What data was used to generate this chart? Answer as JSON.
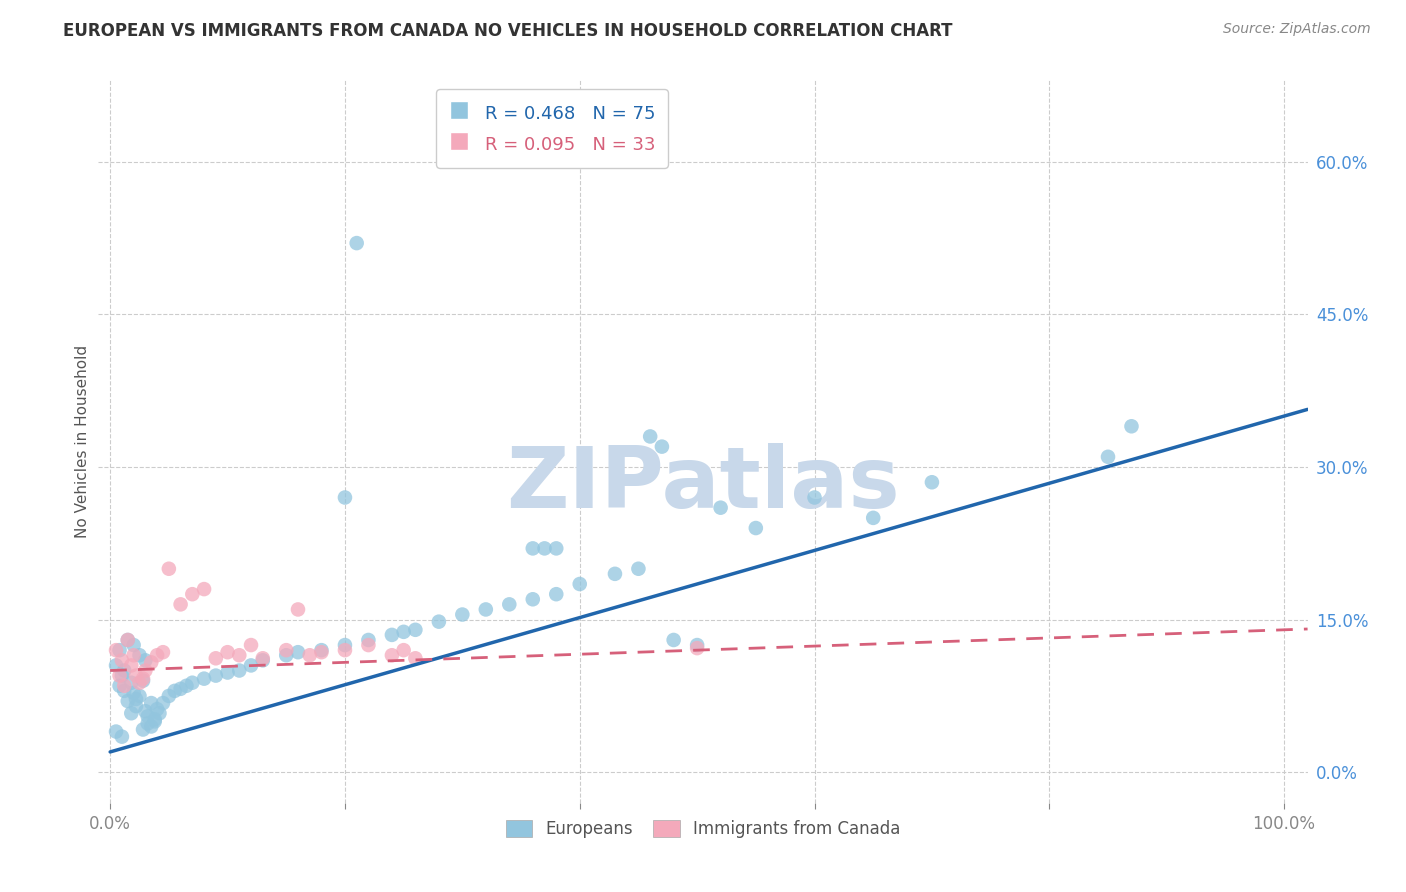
{
  "title": "EUROPEAN VS IMMIGRANTS FROM CANADA NO VEHICLES IN HOUSEHOLD CORRELATION CHART",
  "source": "Source: ZipAtlas.com",
  "ylabel": "No Vehicles in Household",
  "blue_R": 0.468,
  "blue_N": 75,
  "pink_R": 0.095,
  "pink_N": 33,
  "blue_color": "#92c5de",
  "pink_color": "#f4a9bb",
  "blue_line_color": "#2166ac",
  "pink_line_color": "#d6607a",
  "background_color": "#ffffff",
  "grid_color": "#cccccc",
  "watermark_color": "#c8d8ea",
  "blue_line_slope": 0.33,
  "blue_line_intercept": 0.02,
  "pink_line_slope": 0.04,
  "pink_line_intercept": 0.1,
  "blue_points_x": [
    0.005,
    0.008,
    0.01,
    0.012,
    0.015,
    0.018,
    0.02,
    0.022,
    0.025,
    0.028,
    0.03,
    0.032,
    0.035,
    0.038,
    0.04,
    0.015,
    0.02,
    0.025,
    0.03,
    0.018,
    0.022,
    0.012,
    0.008,
    0.035,
    0.042,
    0.005,
    0.01,
    0.028,
    0.032,
    0.038,
    0.045,
    0.05,
    0.055,
    0.06,
    0.065,
    0.07,
    0.08,
    0.09,
    0.1,
    0.11,
    0.12,
    0.13,
    0.15,
    0.16,
    0.18,
    0.2,
    0.22,
    0.24,
    0.25,
    0.26,
    0.28,
    0.3,
    0.32,
    0.34,
    0.36,
    0.38,
    0.38,
    0.4,
    0.43,
    0.45,
    0.46,
    0.47,
    0.5,
    0.52,
    0.55,
    0.6,
    0.65,
    0.7,
    0.85,
    0.87,
    0.48,
    0.2,
    0.21,
    0.37,
    0.36
  ],
  "blue_points_y": [
    0.105,
    0.085,
    0.095,
    0.08,
    0.07,
    0.088,
    0.078,
    0.065,
    0.075,
    0.09,
    0.06,
    0.055,
    0.068,
    0.05,
    0.062,
    0.13,
    0.125,
    0.115,
    0.11,
    0.058,
    0.072,
    0.1,
    0.12,
    0.045,
    0.058,
    0.04,
    0.035,
    0.042,
    0.048,
    0.052,
    0.068,
    0.075,
    0.08,
    0.082,
    0.085,
    0.088,
    0.092,
    0.095,
    0.098,
    0.1,
    0.105,
    0.11,
    0.115,
    0.118,
    0.12,
    0.125,
    0.13,
    0.135,
    0.138,
    0.14,
    0.148,
    0.155,
    0.16,
    0.165,
    0.17,
    0.175,
    0.22,
    0.185,
    0.195,
    0.2,
    0.33,
    0.32,
    0.125,
    0.26,
    0.24,
    0.27,
    0.25,
    0.285,
    0.31,
    0.34,
    0.13,
    0.27,
    0.52,
    0.22,
    0.22
  ],
  "pink_points_x": [
    0.005,
    0.008,
    0.01,
    0.012,
    0.015,
    0.018,
    0.02,
    0.022,
    0.025,
    0.028,
    0.03,
    0.035,
    0.04,
    0.045,
    0.05,
    0.06,
    0.07,
    0.08,
    0.09,
    0.1,
    0.11,
    0.12,
    0.13,
    0.15,
    0.16,
    0.17,
    0.18,
    0.2,
    0.22,
    0.24,
    0.25,
    0.26,
    0.5
  ],
  "pink_points_y": [
    0.12,
    0.095,
    0.11,
    0.085,
    0.13,
    0.105,
    0.115,
    0.095,
    0.088,
    0.092,
    0.1,
    0.108,
    0.115,
    0.118,
    0.2,
    0.165,
    0.175,
    0.18,
    0.112,
    0.118,
    0.115,
    0.125,
    0.112,
    0.12,
    0.16,
    0.115,
    0.118,
    0.12,
    0.125,
    0.115,
    0.12,
    0.112,
    0.122
  ]
}
